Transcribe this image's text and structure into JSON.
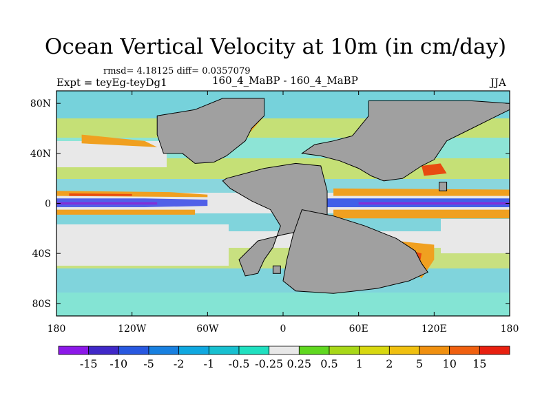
{
  "title": "Ocean Vertical Velocity at 10m (in cm/day)",
  "stats": "rmsd= 4.18125 diff= 0.0357079",
  "expt": "Expt = teyEg-teyDg1",
  "runs": "160_4_MaBP - 160_4_MaBP",
  "season": "JJA",
  "map": {
    "lon_range": [
      -180,
      180
    ],
    "lat_range": [
      -90,
      90
    ],
    "lat_ticks": [
      {
        "value": 80,
        "label": "80N"
      },
      {
        "value": 40,
        "label": "40N"
      },
      {
        "value": 0,
        "label": "0"
      },
      {
        "value": -40,
        "label": "40S"
      },
      {
        "value": -80,
        "label": "80S"
      }
    ],
    "lon_ticks": [
      {
        "value": -180,
        "label": "180"
      },
      {
        "value": -120,
        "label": "120W"
      },
      {
        "value": -60,
        "label": "60W"
      },
      {
        "value": 0,
        "label": "0"
      },
      {
        "value": 60,
        "label": "60E"
      },
      {
        "value": 120,
        "label": "120E"
      },
      {
        "value": 180,
        "label": "180"
      }
    ],
    "land_color": "#a0a0a0",
    "continents": [
      {
        "name": "north-landmass",
        "points": [
          [
            -100,
            70
          ],
          [
            -70,
            75
          ],
          [
            -48,
            84
          ],
          [
            -15,
            84
          ],
          [
            -15,
            70
          ],
          [
            -25,
            60
          ],
          [
            -30,
            50
          ],
          [
            -45,
            38
          ],
          [
            -55,
            33
          ],
          [
            -70,
            32
          ],
          [
            -80,
            40
          ],
          [
            -95,
            40
          ],
          [
            -100,
            55
          ]
        ]
      },
      {
        "name": "south-western-landmass",
        "points": [
          [
            -45,
            20
          ],
          [
            -15,
            28
          ],
          [
            10,
            32
          ],
          [
            30,
            30
          ],
          [
            35,
            10
          ],
          [
            35,
            -10
          ],
          [
            25,
            -20
          ],
          [
            0,
            -25
          ],
          [
            -20,
            -30
          ],
          [
            -35,
            -45
          ],
          [
            -30,
            -58
          ],
          [
            -20,
            -56
          ],
          [
            -15,
            -45
          ],
          [
            -8,
            -35
          ],
          [
            -2,
            -18
          ],
          [
            -10,
            -5
          ],
          [
            -25,
            2
          ],
          [
            -42,
            12
          ],
          [
            -48,
            18
          ]
        ]
      },
      {
        "name": "north-eastern-landmass",
        "points": [
          [
            15,
            40
          ],
          [
            25,
            47
          ],
          [
            40,
            50
          ],
          [
            55,
            54
          ],
          [
            68,
            70
          ],
          [
            68,
            82
          ],
          [
            105,
            82
          ],
          [
            130,
            82
          ],
          [
            150,
            82
          ],
          [
            180,
            80
          ],
          [
            180,
            75
          ],
          [
            170,
            70
          ],
          [
            150,
            60
          ],
          [
            130,
            50
          ],
          [
            120,
            35
          ],
          [
            110,
            30
          ],
          [
            95,
            20
          ],
          [
            80,
            18
          ],
          [
            70,
            22
          ],
          [
            60,
            28
          ],
          [
            45,
            34
          ],
          [
            30,
            38
          ]
        ]
      },
      {
        "name": "south-eastern-landmass",
        "points": [
          [
            15,
            -5
          ],
          [
            40,
            -10
          ],
          [
            65,
            -18
          ],
          [
            90,
            -28
          ],
          [
            105,
            -38
          ],
          [
            110,
            -48
          ],
          [
            115,
            -55
          ],
          [
            100,
            -62
          ],
          [
            75,
            -68
          ],
          [
            40,
            -72
          ],
          [
            10,
            -70
          ],
          [
            0,
            -62
          ],
          [
            3,
            -45
          ],
          [
            8,
            -25
          ]
        ]
      },
      {
        "name": "small-island-east",
        "points": [
          [
            124,
            17
          ],
          [
            130,
            17
          ],
          [
            130,
            10
          ],
          [
            124,
            10
          ]
        ]
      },
      {
        "name": "small-island-south",
        "points": [
          [
            -8,
            -50
          ],
          [
            -2,
            -50
          ],
          [
            -2,
            -56
          ],
          [
            -8,
            -56
          ]
        ]
      }
    ],
    "features": [
      {
        "name": "equatorial-blue-band",
        "color": "#5060e8",
        "points": [
          [
            -180,
            4
          ],
          [
            -110,
            4
          ],
          [
            -60,
            3
          ],
          [
            -60,
            -2
          ],
          [
            -110,
            -3
          ],
          [
            -180,
            -3
          ]
        ]
      },
      {
        "name": "equatorial-purple-core",
        "color": "#8030d8",
        "points": [
          [
            -180,
            1
          ],
          [
            -100,
            1
          ],
          [
            -100,
            -1
          ],
          [
            -180,
            -1
          ]
        ]
      },
      {
        "name": "equatorial-orange-north",
        "color": "#f0a020",
        "points": [
          [
            -180,
            10
          ],
          [
            -90,
            9
          ],
          [
            -60,
            7
          ],
          [
            -60,
            5
          ],
          [
            -180,
            6
          ]
        ]
      },
      {
        "name": "equatorial-red-north",
        "color": "#e84a10",
        "points": [
          [
            -170,
            8
          ],
          [
            -120,
            7.5
          ],
          [
            -120,
            6
          ],
          [
            -170,
            6
          ]
        ]
      },
      {
        "name": "equatorial-orange-south",
        "color": "#f0a020",
        "points": [
          [
            -180,
            -5
          ],
          [
            -70,
            -5
          ],
          [
            -70,
            -9
          ],
          [
            -180,
            -9
          ]
        ]
      },
      {
        "name": "east-equatorial-blue",
        "color": "#4060e8",
        "points": [
          [
            35,
            4
          ],
          [
            180,
            4
          ],
          [
            180,
            -3
          ],
          [
            35,
            -3
          ]
        ]
      },
      {
        "name": "east-equatorial-purple",
        "color": "#8030d8",
        "points": [
          [
            60,
            1
          ],
          [
            180,
            1
          ],
          [
            180,
            -1
          ],
          [
            60,
            -1
          ]
        ]
      },
      {
        "name": "east-equatorial-orange-north",
        "color": "#f0a020",
        "points": [
          [
            40,
            12
          ],
          [
            180,
            11
          ],
          [
            180,
            6
          ],
          [
            40,
            6
          ]
        ]
      },
      {
        "name": "east-equatorial-orange-south",
        "color": "#f0a020",
        "points": [
          [
            40,
            -5
          ],
          [
            180,
            -5
          ],
          [
            180,
            -12
          ],
          [
            40,
            -12
          ]
        ]
      },
      {
        "name": "south-mid-orange",
        "color": "#f0a020",
        "points": [
          [
            90,
            -30
          ],
          [
            120,
            -33
          ],
          [
            120,
            -45
          ],
          [
            110,
            -60
          ],
          [
            95,
            -48
          ]
        ]
      },
      {
        "name": "south-mid-red",
        "color": "#e84a10",
        "points": [
          [
            95,
            -36
          ],
          [
            110,
            -40
          ],
          [
            108,
            -52
          ],
          [
            100,
            -46
          ]
        ]
      },
      {
        "name": "north-atlantic-orange",
        "color": "#f0a020",
        "points": [
          [
            -40,
            52
          ],
          [
            -25,
            58
          ],
          [
            -15,
            70
          ],
          [
            -20,
            72
          ],
          [
            -30,
            62
          ],
          [
            -45,
            56
          ]
        ]
      },
      {
        "name": "north-pacific-orange",
        "color": "#f0a020",
        "points": [
          [
            -160,
            55
          ],
          [
            -110,
            50
          ],
          [
            -100,
            45
          ],
          [
            -160,
            48
          ]
        ]
      },
      {
        "name": "east-north-red",
        "color": "#e84a10",
        "points": [
          [
            110,
            30
          ],
          [
            125,
            32
          ],
          [
            130,
            24
          ],
          [
            112,
            22
          ]
        ]
      }
    ]
  },
  "colorbar": {
    "colors": [
      "#8c18e8",
      "#4028c8",
      "#2858e0",
      "#1880e0",
      "#10a8e0",
      "#18c0d0",
      "#20e0c0",
      "#e8e8e8",
      "#60d820",
      "#a8d818",
      "#d8d810",
      "#f0c010",
      "#f09010",
      "#f06010",
      "#e82010"
    ],
    "labels": [
      "-15",
      "-10",
      "-5",
      "-2",
      "-1",
      "-0.5",
      "-0.25",
      "0.25",
      "0.5",
      "1",
      "2",
      "5",
      "10",
      "15"
    ]
  }
}
